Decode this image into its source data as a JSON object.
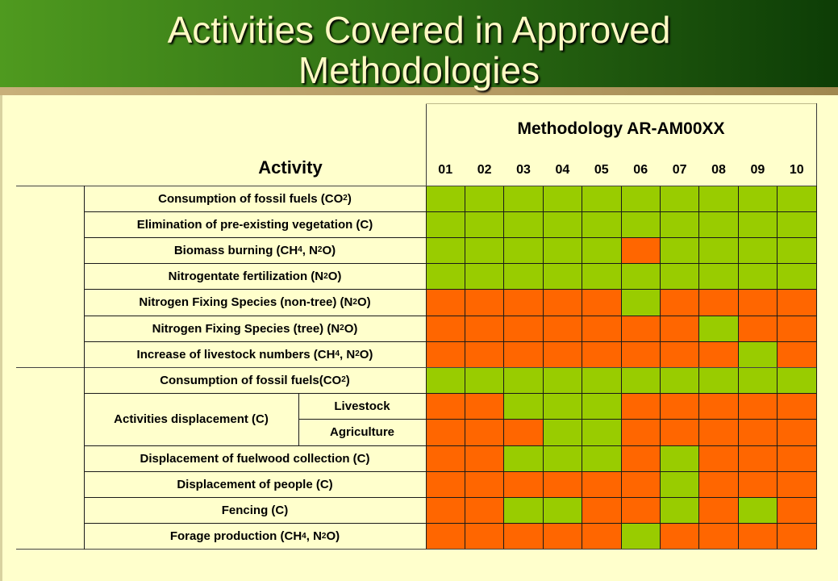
{
  "slide": {
    "title_line1": "Activities Covered in Approved",
    "title_line2": "Methodologies"
  },
  "colors": {
    "yes": "#99cc00",
    "no": "#ff6600",
    "background": "#ffffcc",
    "title_text": "#fff9c4"
  },
  "table": {
    "methodology_header": "Methodology AR-AM00XX",
    "activity_header": "Activity",
    "columns": [
      "01",
      "02",
      "03",
      "04",
      "05",
      "06",
      "07",
      "08",
      "09",
      "10"
    ],
    "rows": [
      {
        "label": [
          "Consumption of fossil fuels (CO",
          {
            "sub": "2"
          },
          ")"
        ],
        "cells": "GGGGGGGGGG"
      },
      {
        "label": [
          "Elimination of pre-existing vegetation (C)"
        ],
        "cells": "GGGGGGGGGG"
      },
      {
        "label": [
          "Biomass burning (CH",
          {
            "sub": "4"
          },
          ", N",
          {
            "sub": "2"
          },
          "O)"
        ],
        "cells": "GGGGGOGGGG"
      },
      {
        "label": [
          "Nitrogentate fertilization (N",
          {
            "sub": "2"
          },
          "O)"
        ],
        "cells": "GGGGGGGGGG"
      },
      {
        "label": [
          "Nitrogen Fixing Species (non-tree) (N",
          {
            "sub": "2"
          },
          "O)"
        ],
        "cells": "OOOOOGOOOO"
      },
      {
        "label": [
          "Nitrogen Fixing Species (tree) (N",
          {
            "sub": "2"
          },
          "O)"
        ],
        "cells": "OOOOOOOGOO"
      },
      {
        "label": [
          "Increase of livestock numbers (CH",
          {
            "sub": "4"
          },
          ", N",
          {
            "sub": "2"
          },
          "O)"
        ],
        "cells": "OOOOOOOOGO"
      },
      {
        "label": [
          "Consumption of fossil fuels(CO",
          {
            "sub": "2"
          },
          ")"
        ],
        "cells": "GGGGGGGGGG"
      },
      {
        "label": [
          "Livestock"
        ],
        "group": "Activities displacement  (C)",
        "cells": "OOGGGOOOOO"
      },
      {
        "label": [
          "Agriculture"
        ],
        "group": "Activities displacement  (C)",
        "cells": "OOOGGOOOOO"
      },
      {
        "label": [
          "Displacement of fuelwood collection (C)"
        ],
        "cells": "OOGGGOGOOO"
      },
      {
        "label": [
          "Displacement of people (C)"
        ],
        "cells": "OOOOOOGOOO"
      },
      {
        "label": [
          "Fencing (C)"
        ],
        "cells": "OOGGOOGOGO"
      },
      {
        "label": [
          "Forage production (CH",
          {
            "sub": "4"
          },
          ", N",
          {
            "sub": "2"
          },
          "O)"
        ],
        "cells": "OOOOOGOOOO"
      }
    ]
  }
}
